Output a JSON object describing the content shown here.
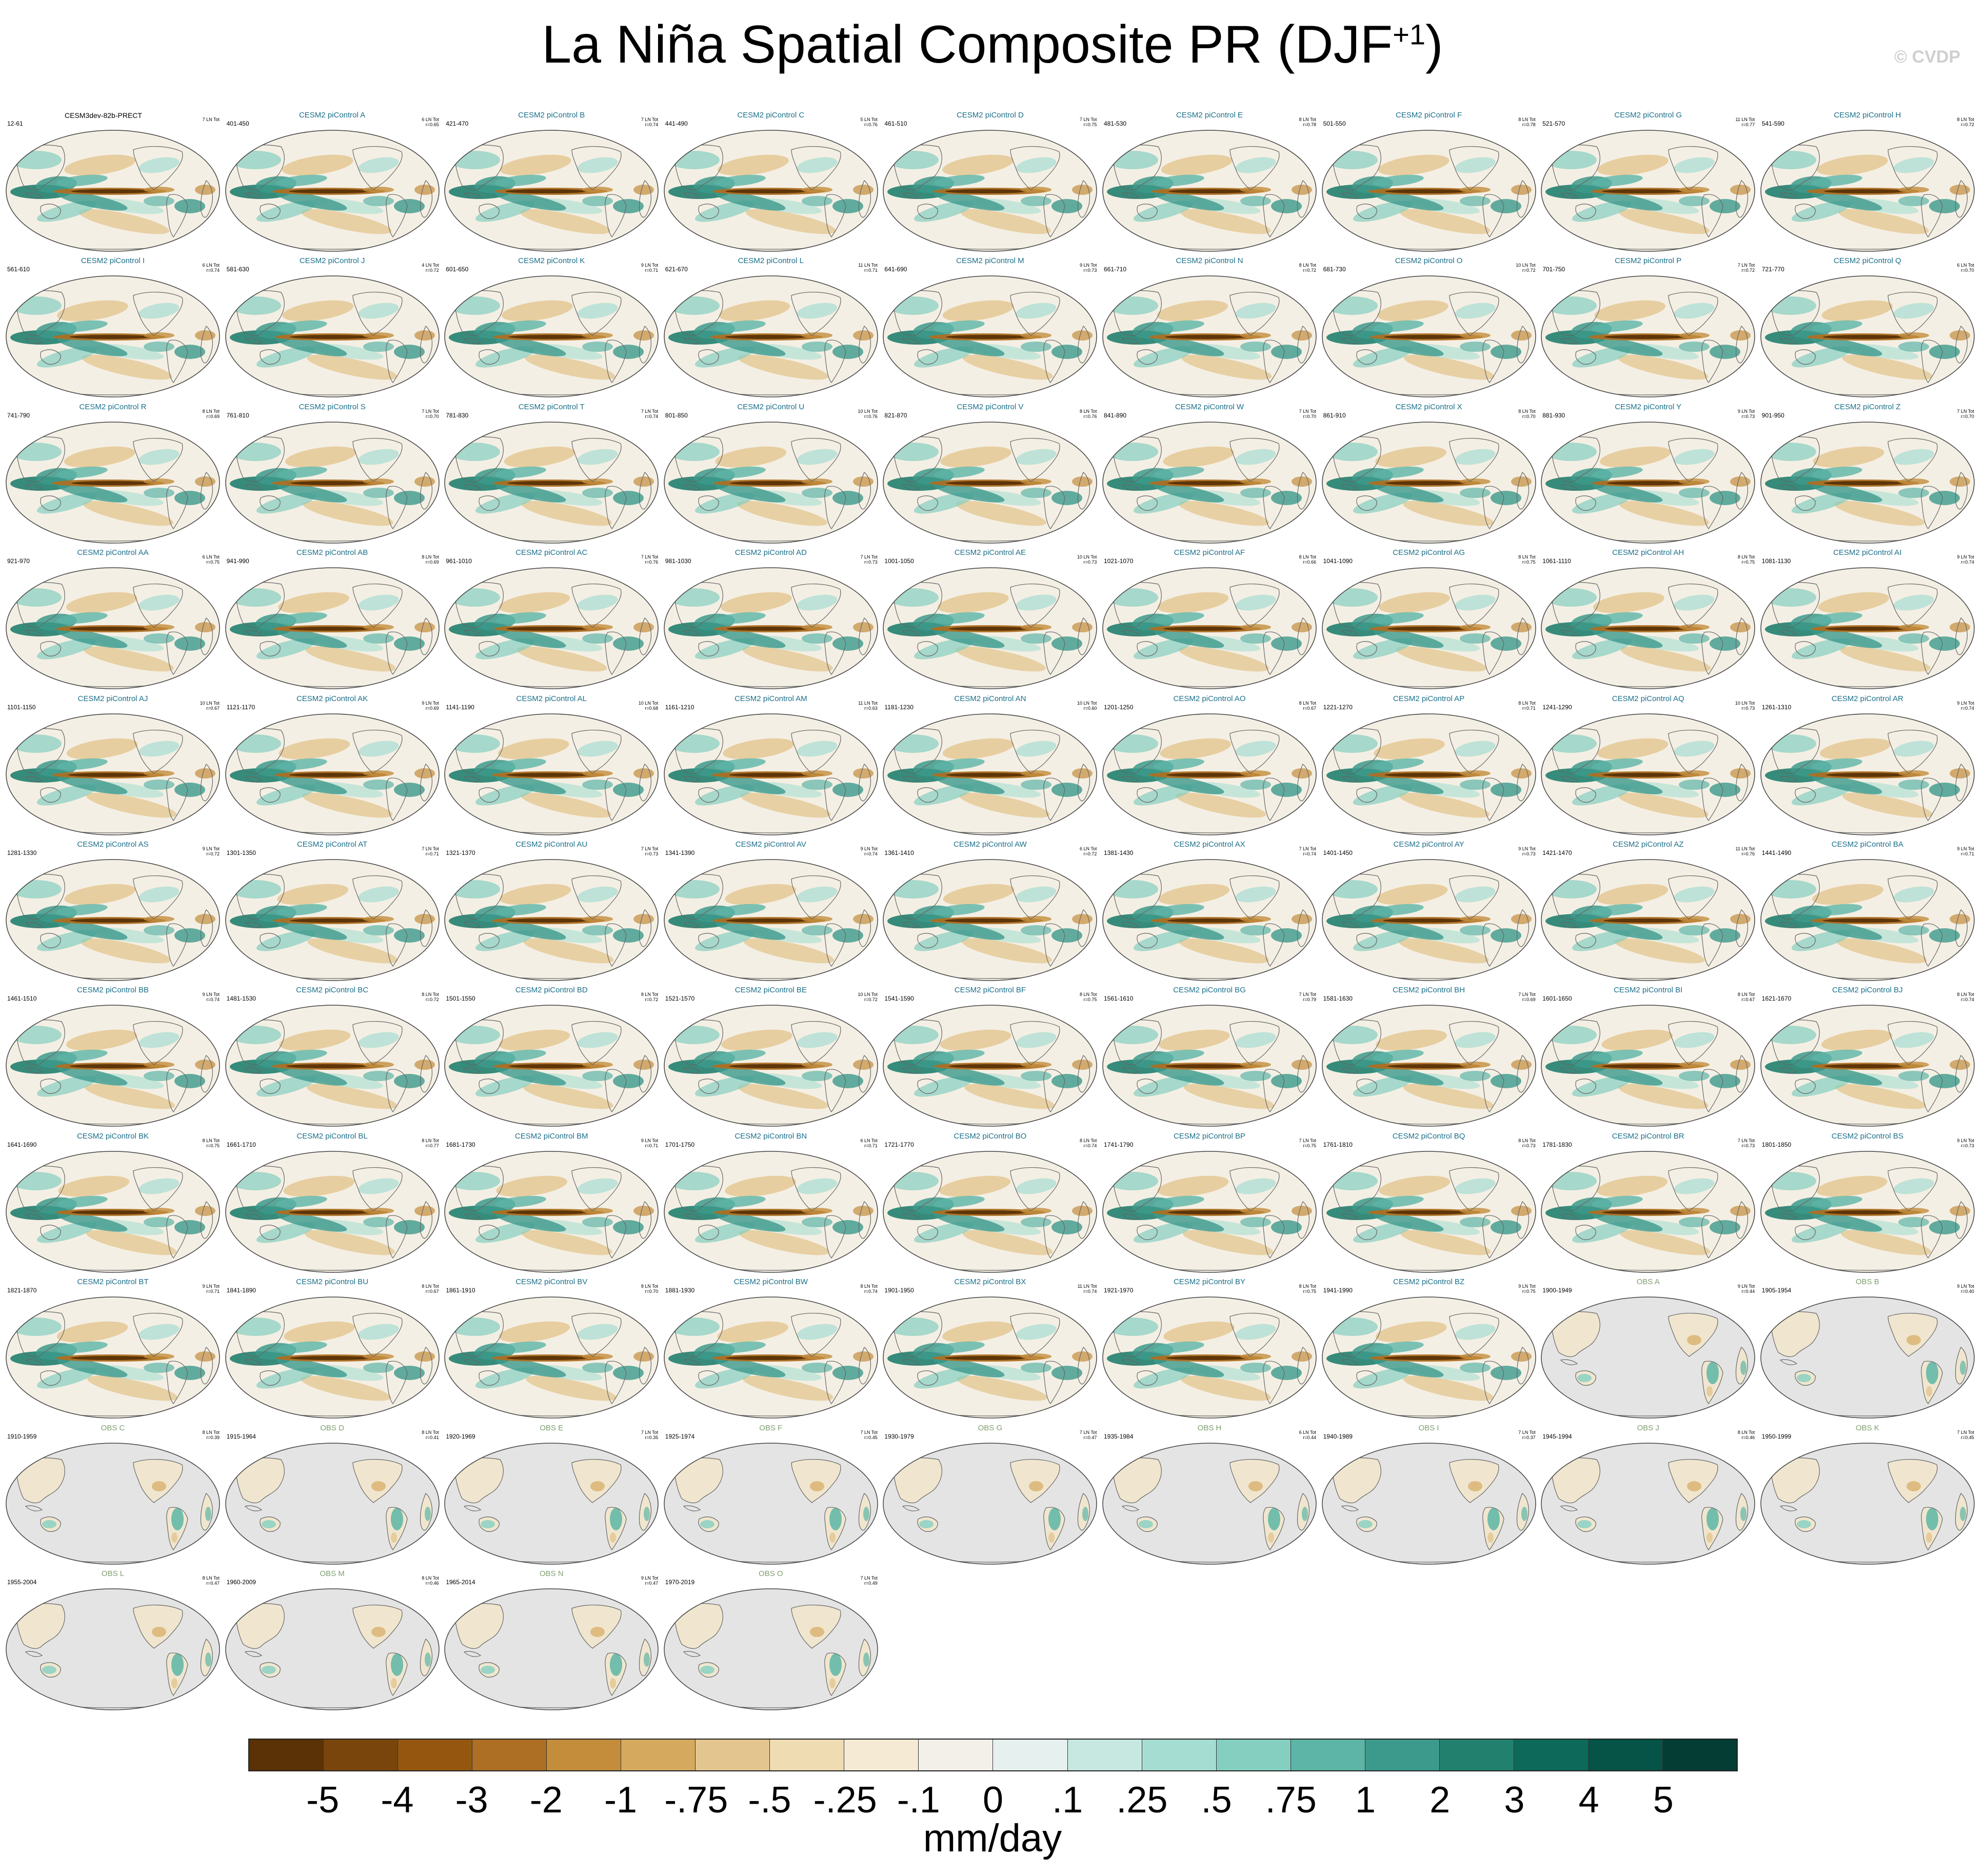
{
  "title": {
    "main": "La Niña Spatial Composite PR (DJF",
    "superscript": "+1",
    "close": ")"
  },
  "copyright": "© CVDP",
  "colors": {
    "model_title": "#1b6f8a",
    "obs_title": "#7f9e6f",
    "first_title": "#000000",
    "land_missing": "#e4e4e4",
    "coast": "#666666"
  },
  "chart_data": {
    "type": "map",
    "grid_columns": 9,
    "panels": [
      {
        "title": "CESM3dev-82b-PRECT",
        "years": "12-61",
        "count": "7 LN Tot",
        "r": "",
        "kind": "first"
      },
      {
        "title": "CESM2 piControl A",
        "years": "401-450",
        "count": "6 LN Tot",
        "r": "r=0.65",
        "kind": "model"
      },
      {
        "title": "CESM2 piControl B",
        "years": "421-470",
        "count": "7 LN Tot",
        "r": "r=0.74",
        "kind": "model"
      },
      {
        "title": "CESM2 piControl C",
        "years": "441-490",
        "count": "5 LN Tot",
        "r": "r=0.76",
        "kind": "model"
      },
      {
        "title": "CESM2 piControl D",
        "years": "461-510",
        "count": "7 LN Tot",
        "r": "r=0.75",
        "kind": "model"
      },
      {
        "title": "CESM2 piControl E",
        "years": "481-530",
        "count": "8 LN Tot",
        "r": "r=0.78",
        "kind": "model"
      },
      {
        "title": "CESM2 piControl F",
        "years": "501-550",
        "count": "8 LN Tot",
        "r": "r=0.78",
        "kind": "model"
      },
      {
        "title": "CESM2 piControl G",
        "years": "521-570",
        "count": "11 LN Tot",
        "r": "r=0.77",
        "kind": "model"
      },
      {
        "title": "CESM2 piControl H",
        "years": "541-590",
        "count": "8 LN Tot",
        "r": "r=0.72",
        "kind": "model"
      },
      {
        "title": "CESM2 piControl I",
        "years": "561-610",
        "count": "6 LN Tot",
        "r": "r=0.74",
        "kind": "model"
      },
      {
        "title": "CESM2 piControl J",
        "years": "581-630",
        "count": "4 LN Tot",
        "r": "r=0.72",
        "kind": "model"
      },
      {
        "title": "CESM2 piControl K",
        "years": "601-650",
        "count": "9 LN Tot",
        "r": "r=0.71",
        "kind": "model"
      },
      {
        "title": "CESM2 piControl L",
        "years": "621-670",
        "count": "11 LN Tot",
        "r": "r=0.71",
        "kind": "model"
      },
      {
        "title": "CESM2 piControl M",
        "years": "641-690",
        "count": "9 LN Tot",
        "r": "r=0.73",
        "kind": "model"
      },
      {
        "title": "CESM2 piControl N",
        "years": "661-710",
        "count": "8 LN Tot",
        "r": "r=0.72",
        "kind": "model"
      },
      {
        "title": "CESM2 piControl O",
        "years": "681-730",
        "count": "10 LN Tot",
        "r": "r=0.72",
        "kind": "model"
      },
      {
        "title": "CESM2 piControl P",
        "years": "701-750",
        "count": "7 LN Tot",
        "r": "r=0.72",
        "kind": "model"
      },
      {
        "title": "CESM2 piControl Q",
        "years": "721-770",
        "count": "6 LN Tot",
        "r": "r=0.70",
        "kind": "model"
      },
      {
        "title": "CESM2 piControl R",
        "years": "741-790",
        "count": "8 LN Tot",
        "r": "r=0.69",
        "kind": "model"
      },
      {
        "title": "CESM2 piControl S",
        "years": "761-810",
        "count": "7 LN Tot",
        "r": "r=0.70",
        "kind": "model"
      },
      {
        "title": "CESM2 piControl T",
        "years": "781-830",
        "count": "7 LN Tot",
        "r": "r=0.74",
        "kind": "model"
      },
      {
        "title": "CESM2 piControl U",
        "years": "801-850",
        "count": "10 LN Tot",
        "r": "r=0.76",
        "kind": "model"
      },
      {
        "title": "CESM2 piControl V",
        "years": "821-870",
        "count": "8 LN Tot",
        "r": "r=0.76",
        "kind": "model"
      },
      {
        "title": "CESM2 piControl W",
        "years": "841-890",
        "count": "7 LN Tot",
        "r": "r=0.70",
        "kind": "model"
      },
      {
        "title": "CESM2 piControl X",
        "years": "861-910",
        "count": "8 LN Tot",
        "r": "r=0.70",
        "kind": "model"
      },
      {
        "title": "CESM2 piControl Y",
        "years": "881-930",
        "count": "9 LN Tot",
        "r": "r=0.73",
        "kind": "model"
      },
      {
        "title": "CESM2 piControl Z",
        "years": "901-950",
        "count": "7 LN Tot",
        "r": "r=0.70",
        "kind": "model"
      },
      {
        "title": "CESM2 piControl AA",
        "years": "921-970",
        "count": "6 LN Tot",
        "r": "r=0.75",
        "kind": "model"
      },
      {
        "title": "CESM2 piControl AB",
        "years": "941-990",
        "count": "8 LN Tot",
        "r": "r=0.69",
        "kind": "model"
      },
      {
        "title": "CESM2 piControl AC",
        "years": "961-1010",
        "count": "7 LN Tot",
        "r": "r=0.76",
        "kind": "model"
      },
      {
        "title": "CESM2 piControl AD",
        "years": "981-1030",
        "count": "7 LN Tot",
        "r": "r=0.73",
        "kind": "model"
      },
      {
        "title": "CESM2 piControl AE",
        "years": "1001-1050",
        "count": "10 LN Tot",
        "r": "r=0.73",
        "kind": "model"
      },
      {
        "title": "CESM2 piControl AF",
        "years": "1021-1070",
        "count": "8 LN Tot",
        "r": "r=0.66",
        "kind": "model"
      },
      {
        "title": "CESM2 piControl AG",
        "years": "1041-1090",
        "count": "8 LN Tot",
        "r": "r=0.75",
        "kind": "model"
      },
      {
        "title": "CESM2 piControl AH",
        "years": "1061-1110",
        "count": "8 LN Tot",
        "r": "r=0.75",
        "kind": "model"
      },
      {
        "title": "CESM2 piControl AI",
        "years": "1081-1130",
        "count": "9 LN Tot",
        "r": "r=0.74",
        "kind": "model"
      },
      {
        "title": "CESM2 piControl AJ",
        "years": "1101-1150",
        "count": "10 LN Tot",
        "r": "r=0.67",
        "kind": "model"
      },
      {
        "title": "CESM2 piControl AK",
        "years": "1121-1170",
        "count": "9 LN Tot",
        "r": "r=0.69",
        "kind": "model"
      },
      {
        "title": "CESM2 piControl AL",
        "years": "1141-1190",
        "count": "10 LN Tot",
        "r": "r=0.68",
        "kind": "model"
      },
      {
        "title": "CESM2 piControl AM",
        "years": "1161-1210",
        "count": "11 LN Tot",
        "r": "r=0.63",
        "kind": "model"
      },
      {
        "title": "CESM2 piControl AN",
        "years": "1181-1230",
        "count": "10 LN Tot",
        "r": "r=0.60",
        "kind": "model"
      },
      {
        "title": "CESM2 piControl AO",
        "years": "1201-1250",
        "count": "8 LN Tot",
        "r": "r=0.67",
        "kind": "model"
      },
      {
        "title": "CESM2 piControl AP",
        "years": "1221-1270",
        "count": "8 LN Tot",
        "r": "r=0.71",
        "kind": "model"
      },
      {
        "title": "CESM2 piControl AQ",
        "years": "1241-1290",
        "count": "10 LN Tot",
        "r": "r=0.73",
        "kind": "model"
      },
      {
        "title": "CESM2 piControl AR",
        "years": "1261-1310",
        "count": "9 LN Tot",
        "r": "r=0.74",
        "kind": "model"
      },
      {
        "title": "CESM2 piControl AS",
        "years": "1281-1330",
        "count": "9 LN Tot",
        "r": "r=0.72",
        "kind": "model"
      },
      {
        "title": "CESM2 piControl AT",
        "years": "1301-1350",
        "count": "7 LN Tot",
        "r": "r=0.71",
        "kind": "model"
      },
      {
        "title": "CESM2 piControl AU",
        "years": "1321-1370",
        "count": "7 LN Tot",
        "r": "r=0.73",
        "kind": "model"
      },
      {
        "title": "CESM2 piControl AV",
        "years": "1341-1390",
        "count": "9 LN Tot",
        "r": "r=0.74",
        "kind": "model"
      },
      {
        "title": "CESM2 piControl AW",
        "years": "1361-1410",
        "count": "6 LN Tot",
        "r": "r=0.72",
        "kind": "model"
      },
      {
        "title": "CESM2 piControl AX",
        "years": "1381-1430",
        "count": "7 LN Tot",
        "r": "r=0.74",
        "kind": "model"
      },
      {
        "title": "CESM2 piControl AY",
        "years": "1401-1450",
        "count": "9 LN Tot",
        "r": "r=0.73",
        "kind": "model"
      },
      {
        "title": "CESM2 piControl AZ",
        "years": "1421-1470",
        "count": "11 LN Tot",
        "r": "r=0.76",
        "kind": "model"
      },
      {
        "title": "CESM2 piControl BA",
        "years": "1441-1490",
        "count": "9 LN Tot",
        "r": "r=0.71",
        "kind": "model"
      },
      {
        "title": "CESM2 piControl BB",
        "years": "1461-1510",
        "count": "9 LN Tot",
        "r": "r=0.74",
        "kind": "model"
      },
      {
        "title": "CESM2 piControl BC",
        "years": "1481-1530",
        "count": "8 LN Tot",
        "r": "r=0.72",
        "kind": "model"
      },
      {
        "title": "CESM2 piControl BD",
        "years": "1501-1550",
        "count": "8 LN Tot",
        "r": "r=0.72",
        "kind": "model"
      },
      {
        "title": "CESM2 piControl BE",
        "years": "1521-1570",
        "count": "10 LN Tot",
        "r": "r=0.72",
        "kind": "model"
      },
      {
        "title": "CESM2 piControl BF",
        "years": "1541-1590",
        "count": "8 LN Tot",
        "r": "r=0.75",
        "kind": "model"
      },
      {
        "title": "CESM2 piControl BG",
        "years": "1561-1610",
        "count": "7 LN Tot",
        "r": "r=0.79",
        "kind": "model"
      },
      {
        "title": "CESM2 piControl BH",
        "years": "1581-1630",
        "count": "7 LN Tot",
        "r": "r=0.69",
        "kind": "model"
      },
      {
        "title": "CESM2 piControl BI",
        "years": "1601-1650",
        "count": "8 LN Tot",
        "r": "r=0.67",
        "kind": "model"
      },
      {
        "title": "CESM2 piControl BJ",
        "years": "1621-1670",
        "count": "8 LN Tot",
        "r": "r=0.74",
        "kind": "model"
      },
      {
        "title": "CESM2 piControl BK",
        "years": "1641-1690",
        "count": "8 LN Tot",
        "r": "r=0.75",
        "kind": "model"
      },
      {
        "title": "CESM2 piControl BL",
        "years": "1661-1710",
        "count": "8 LN Tot",
        "r": "r=0.77",
        "kind": "model"
      },
      {
        "title": "CESM2 piControl BM",
        "years": "1681-1730",
        "count": "9 LN Tot",
        "r": "r=0.71",
        "kind": "model"
      },
      {
        "title": "CESM2 piControl BN",
        "years": "1701-1750",
        "count": "6 LN Tot",
        "r": "r=0.71",
        "kind": "model"
      },
      {
        "title": "CESM2 piControl BO",
        "years": "1721-1770",
        "count": "8 LN Tot",
        "r": "r=0.74",
        "kind": "model"
      },
      {
        "title": "CESM2 piControl BP",
        "years": "1741-1790",
        "count": "7 LN Tot",
        "r": "r=0.75",
        "kind": "model"
      },
      {
        "title": "CESM2 piControl BQ",
        "years": "1761-1810",
        "count": "8 LN Tot",
        "r": "r=0.73",
        "kind": "model"
      },
      {
        "title": "CESM2 piControl BR",
        "years": "1781-1830",
        "count": "7 LN Tot",
        "r": "r=0.73",
        "kind": "model"
      },
      {
        "title": "CESM2 piControl BS",
        "years": "1801-1850",
        "count": "9 LN Tot",
        "r": "r=0.73",
        "kind": "model"
      },
      {
        "title": "CESM2 piControl BT",
        "years": "1821-1870",
        "count": "9 LN Tot",
        "r": "r=0.71",
        "kind": "model"
      },
      {
        "title": "CESM2 piControl BU",
        "years": "1841-1890",
        "count": "8 LN Tot",
        "r": "r=0.67",
        "kind": "model"
      },
      {
        "title": "CESM2 piControl BV",
        "years": "1861-1910",
        "count": "8 LN Tot",
        "r": "r=0.70",
        "kind": "model"
      },
      {
        "title": "CESM2 piControl BW",
        "years": "1881-1930",
        "count": "8 LN Tot",
        "r": "r=0.74",
        "kind": "model"
      },
      {
        "title": "CESM2 piControl BX",
        "years": "1901-1950",
        "count": "11 LN Tot",
        "r": "r=0.74",
        "kind": "model"
      },
      {
        "title": "CESM2 piControl BY",
        "years": "1921-1970",
        "count": "8 LN Tot",
        "r": "r=0.75",
        "kind": "model"
      },
      {
        "title": "CESM2 piControl BZ",
        "years": "1941-1990",
        "count": "9 LN Tot",
        "r": "r=0.75",
        "kind": "model"
      },
      {
        "title": "OBS A",
        "years": "1900-1949",
        "count": "9 LN Tot",
        "r": "r=0.44",
        "kind": "obs"
      },
      {
        "title": "OBS B",
        "years": "1905-1954",
        "count": "9 LN Tot",
        "r": "r=0.40",
        "kind": "obs"
      },
      {
        "title": "OBS C",
        "years": "1910-1959",
        "count": "8 LN Tot",
        "r": "r=0.39",
        "kind": "obs"
      },
      {
        "title": "OBS D",
        "years": "1915-1964",
        "count": "8 LN Tot",
        "r": "r=0.41",
        "kind": "obs"
      },
      {
        "title": "OBS E",
        "years": "1920-1969",
        "count": "7 LN Tot",
        "r": "r=0.35",
        "kind": "obs"
      },
      {
        "title": "OBS F",
        "years": "1925-1974",
        "count": "7 LN Tot",
        "r": "r=0.45",
        "kind": "obs"
      },
      {
        "title": "OBS G",
        "years": "1930-1979",
        "count": "7 LN Tot",
        "r": "r=0.47",
        "kind": "obs"
      },
      {
        "title": "OBS H",
        "years": "1935-1984",
        "count": "6 LN Tot",
        "r": "r=0.44",
        "kind": "obs"
      },
      {
        "title": "OBS I",
        "years": "1940-1989",
        "count": "7 LN Tot",
        "r": "r=0.37",
        "kind": "obs"
      },
      {
        "title": "OBS J",
        "years": "1945-1994",
        "count": "8 LN Tot",
        "r": "r=0.46",
        "kind": "obs"
      },
      {
        "title": "OBS K",
        "years": "1950-1999",
        "count": "7 LN Tot",
        "r": "r=0.45",
        "kind": "obs"
      },
      {
        "title": "OBS L",
        "years": "1955-2004",
        "count": "8 LN Tot",
        "r": "r=0.47",
        "kind": "obs"
      },
      {
        "title": "OBS M",
        "years": "1960-2009",
        "count": "8 LN Tot",
        "r": "r=0.46",
        "kind": "obs"
      },
      {
        "title": "OBS N",
        "years": "1965-2014",
        "count": "9 LN Tot",
        "r": "r=0.47",
        "kind": "obs"
      },
      {
        "title": "OBS O",
        "years": "1970-2019",
        "count": "7 LN Tot",
        "r": "r=0.49",
        "kind": "obs"
      }
    ],
    "colorbar": {
      "unit": "mm/day",
      "ticks": [
        "-5",
        "-4",
        "-3",
        "-2",
        "-1",
        "-.75",
        "-.5",
        "-.25",
        "-.1",
        "0",
        ".1",
        ".25",
        ".5",
        ".75",
        "1",
        "2",
        "3",
        "4",
        "5"
      ],
      "colors": [
        "#5a3206",
        "#7a450c",
        "#955710",
        "#ad6f23",
        "#c38d3c",
        "#d5aa5f",
        "#e3c68f",
        "#efdcb3",
        "#f5ead4",
        "#f3f0e9",
        "#e6f1ef",
        "#c7e8e1",
        "#a6ddd2",
        "#84cfc0",
        "#5cb5a6",
        "#3c9a8c",
        "#22806f",
        "#0d6a5b",
        "#065447",
        "#043d33"
      ]
    }
  }
}
